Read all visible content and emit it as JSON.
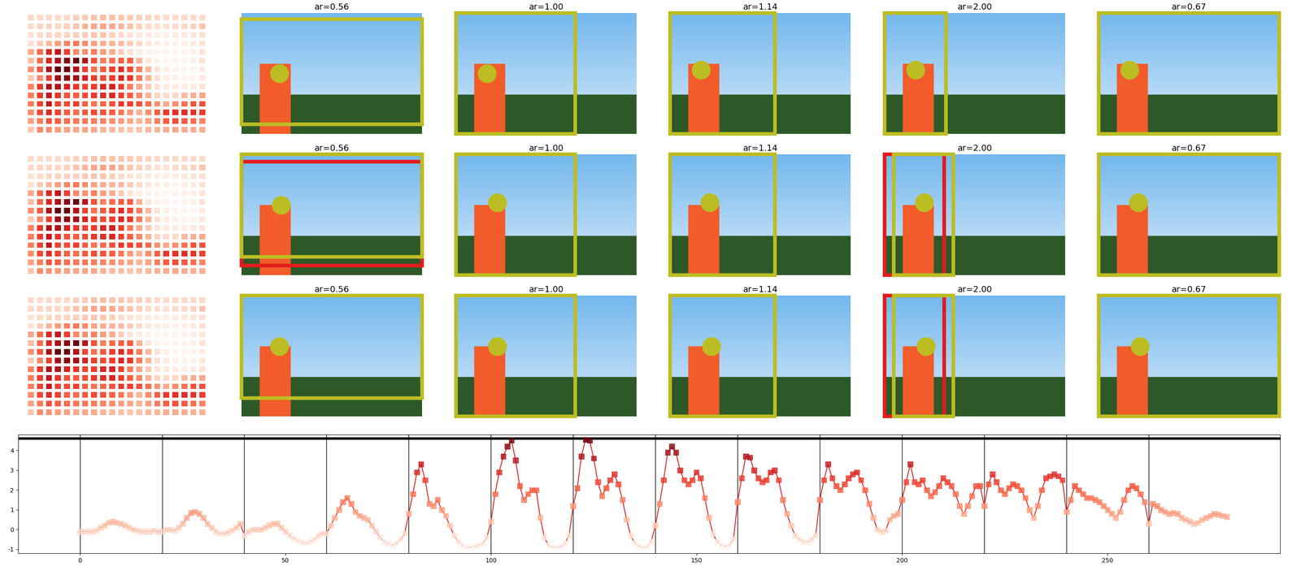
{
  "panels": [
    [
      {
        "title": "ar=0.56",
        "point": [
          0.21,
          0.5
        ],
        "boxes": [
          {
            "color": "#bcbd22",
            "box": [
              0.0,
              0.05,
              1.0,
              0.92
            ]
          }
        ]
      },
      {
        "title": "ar=1.00",
        "point": [
          0.17,
          0.5
        ],
        "boxes": [
          {
            "color": "#bcbd22",
            "box": [
              0.0,
              0.0,
              0.66,
              1.0
            ]
          }
        ]
      },
      {
        "title": "ar=1.14",
        "point": [
          0.17,
          0.47
        ],
        "boxes": [
          {
            "color": "#bcbd22",
            "box": [
              0.0,
              0.0,
              0.58,
              1.0
            ]
          }
        ]
      },
      {
        "title": "ar=2.00",
        "point": [
          0.17,
          0.47
        ],
        "boxes": [
          {
            "color": "#bcbd22",
            "box": [
              0.0,
              0.0,
              0.34,
              1.0
            ]
          }
        ]
      },
      {
        "title": "ar=0.67",
        "point": [
          0.17,
          0.47
        ],
        "boxes": [
          {
            "color": "#bcbd22",
            "box": [
              0.0,
              0.0,
              1.0,
              1.0
            ]
          }
        ]
      }
    ],
    [
      {
        "title": "ar=0.56",
        "point": [
          0.22,
          0.42
        ],
        "boxes": [
          {
            "color": "#e41a1c",
            "box": [
              0.0,
              0.06,
              1.0,
              0.92
            ]
          },
          {
            "color": "#bcbd22",
            "box": [
              0.0,
              0.0,
              1.0,
              0.85
            ]
          }
        ]
      },
      {
        "title": "ar=1.00",
        "point": [
          0.23,
          0.4
        ],
        "boxes": [
          {
            "color": "#bcbd22",
            "box": [
              0.0,
              0.0,
              0.66,
              1.0
            ]
          }
        ]
      },
      {
        "title": "ar=1.14",
        "point": [
          0.22,
          0.4
        ],
        "boxes": [
          {
            "color": "#bcbd22",
            "box": [
              0.0,
              0.0,
              0.58,
              1.0
            ]
          }
        ]
      },
      {
        "title": "ar=2.00",
        "point": [
          0.22,
          0.4
        ],
        "boxes": [
          {
            "color": "#e41a1c",
            "box": [
              0.0,
              0.0,
              0.33,
              1.0
            ]
          },
          {
            "color": "#bcbd22",
            "box": [
              0.05,
              0.0,
              0.38,
              1.0
            ]
          }
        ]
      },
      {
        "title": "ar=0.67",
        "point": [
          0.22,
          0.4
        ],
        "boxes": [
          {
            "color": "#bcbd22",
            "box": [
              0.0,
              0.0,
              1.0,
              1.0
            ]
          }
        ]
      }
    ],
    [
      {
        "title": "ar=0.56",
        "point": [
          0.21,
          0.42
        ],
        "boxes": [
          {
            "color": "#bcbd22",
            "box": [
              0.0,
              0.0,
              1.0,
              0.85
            ]
          }
        ]
      },
      {
        "title": "ar=1.00",
        "point": [
          0.23,
          0.42
        ],
        "boxes": [
          {
            "color": "#bcbd22",
            "box": [
              0.0,
              0.0,
              0.66,
              1.0
            ]
          }
        ]
      },
      {
        "title": "ar=1.14",
        "point": [
          0.23,
          0.42
        ],
        "boxes": [
          {
            "color": "#bcbd22",
            "box": [
              0.0,
              0.0,
              0.58,
              1.0
            ]
          }
        ]
      },
      {
        "title": "ar=2.00",
        "point": [
          0.23,
          0.42
        ],
        "boxes": [
          {
            "color": "#e41a1c",
            "box": [
              0.0,
              0.0,
              0.33,
              1.0
            ]
          },
          {
            "color": "#bcbd22",
            "box": [
              0.05,
              0.0,
              0.38,
              1.0
            ]
          }
        ]
      },
      {
        "title": "ar=0.67",
        "point": [
          0.23,
          0.42
        ],
        "boxes": [
          {
            "color": "#bcbd22",
            "box": [
              0.0,
              0.0,
              1.0,
              1.0
            ]
          }
        ]
      }
    ]
  ],
  "heatmap_shape": [
    14,
    20
  ],
  "chart_data": {
    "type": "line",
    "color": "#d62728",
    "marker": "square",
    "xlim": [
      -15,
      292
    ],
    "ylim": [
      -1.2,
      4.8
    ],
    "xticks": [
      0,
      50,
      100,
      150,
      200,
      250
    ],
    "yticks": [
      -1,
      0,
      1,
      2,
      3,
      4
    ],
    "vlines": [
      0,
      20,
      40,
      60,
      80,
      100,
      120,
      140,
      160,
      180,
      200,
      220,
      240,
      260
    ],
    "hline": 4.6,
    "x": [
      0,
      1,
      2,
      3,
      4,
      5,
      6,
      7,
      8,
      9,
      10,
      11,
      12,
      13,
      14,
      15,
      16,
      17,
      18,
      19,
      20,
      21,
      22,
      23,
      24,
      25,
      26,
      27,
      28,
      29,
      30,
      31,
      32,
      33,
      34,
      35,
      36,
      37,
      38,
      39,
      40,
      41,
      42,
      43,
      44,
      45,
      46,
      47,
      48,
      49,
      50,
      51,
      52,
      53,
      54,
      55,
      56,
      57,
      58,
      59,
      60,
      61,
      62,
      63,
      64,
      65,
      66,
      67,
      68,
      69,
      70,
      71,
      72,
      73,
      74,
      75,
      76,
      77,
      78,
      79,
      80,
      81,
      82,
      83,
      84,
      85,
      86,
      87,
      88,
      89,
      90,
      91,
      92,
      93,
      94,
      95,
      96,
      97,
      98,
      99,
      100,
      101,
      102,
      103,
      104,
      105,
      106,
      107,
      108,
      109,
      110,
      111,
      112,
      113,
      114,
      115,
      116,
      117,
      118,
      119,
      120,
      121,
      122,
      123,
      124,
      125,
      126,
      127,
      128,
      129,
      130,
      131,
      132,
      133,
      134,
      135,
      136,
      137,
      138,
      139,
      140,
      141,
      142,
      143,
      144,
      145,
      146,
      147,
      148,
      149,
      150,
      151,
      152,
      153,
      154,
      155,
      156,
      157,
      158,
      159,
      160,
      161,
      162,
      163,
      164,
      165,
      166,
      167,
      168,
      169,
      170,
      171,
      172,
      173,
      174,
      175,
      176,
      177,
      178,
      179,
      180,
      181,
      182,
      183,
      184,
      185,
      186,
      187,
      188,
      189,
      190,
      191,
      192,
      193,
      194,
      195,
      196,
      197,
      198,
      199,
      200,
      201,
      202,
      203,
      204,
      205,
      206,
      207,
      208,
      209,
      210,
      211,
      212,
      213,
      214,
      215,
      216,
      217,
      218,
      219,
      220,
      221,
      222,
      223,
      224,
      225,
      226,
      227,
      228,
      229,
      230,
      231,
      232,
      233,
      234,
      235,
      236,
      237,
      238,
      239,
      240,
      241,
      242,
      243,
      244,
      245,
      246,
      247,
      248,
      249,
      250,
      251,
      252,
      253,
      254,
      255,
      256,
      257,
      258,
      259,
      260,
      261,
      262,
      263,
      264,
      265,
      266,
      267,
      268,
      269,
      270,
      271,
      272,
      273,
      274,
      275,
      276,
      277,
      278,
      279
    ],
    "values": [
      -0.1,
      -0.1,
      -0.1,
      -0.1,
      -0.05,
      0.1,
      0.2,
      0.35,
      0.4,
      0.35,
      0.3,
      0.2,
      0.1,
      0,
      -0.05,
      -0.1,
      -0.1,
      -0.1,
      -0.05,
      -0.1,
      -0.1,
      0,
      0,
      -0.05,
      0.1,
      0.3,
      0.6,
      0.85,
      0.9,
      0.8,
      0.6,
      0.3,
      0.1,
      -0.1,
      -0.2,
      -0.2,
      -0.15,
      -0.05,
      0.1,
      0.3,
      -0.3,
      -0.1,
      0,
      0,
      0,
      0.1,
      0.2,
      0.3,
      0.3,
      0.1,
      -0.1,
      -0.3,
      -0.45,
      -0.55,
      -0.65,
      -0.7,
      -0.6,
      -0.5,
      -0.3,
      -0.2,
      -0.2,
      0.2,
      0.6,
      1.0,
      1.4,
      1.6,
      1.3,
      0.9,
      0.7,
      0.6,
      0.5,
      0.2,
      -0.1,
      -0.4,
      -0.6,
      -0.7,
      -0.8,
      -0.7,
      -0.5,
      -0.2,
      0.8,
      1.8,
      2.9,
      3.3,
      2.5,
      1.3,
      1.2,
      1.5,
      1.0,
      0.7,
      0.2,
      -0.3,
      -0.6,
      -0.8,
      -0.9,
      -0.9,
      -0.85,
      -0.8,
      -0.7,
      -0.4,
      0.4,
      1.8,
      2.9,
      3.7,
      4.2,
      4.5,
      3.5,
      2.2,
      1.5,
      1.8,
      2.0,
      2.0,
      0.6,
      -0.4,
      -0.8,
      -0.9,
      -0.9,
      -0.85,
      -0.7,
      -0.3,
      1.2,
      2.1,
      3.7,
      4.55,
      4.5,
      3.6,
      2.4,
      1.7,
      2.1,
      2.5,
      2.8,
      2.3,
      1.5,
      0.5,
      -0.3,
      -0.7,
      -0.85,
      -0.9,
      -0.85,
      -0.6,
      0.2,
      1.3,
      2.5,
      3.9,
      4.2,
      3.9,
      3.0,
      2.5,
      2.3,
      2.5,
      2.9,
      2.6,
      1.6,
      0.6,
      -0.2,
      -0.6,
      -0.8,
      -0.85,
      -0.8,
      -0.5,
      1.4,
      2.6,
      3.7,
      3.65,
      3.0,
      2.6,
      2.4,
      2.5,
      2.9,
      3.0,
      2.5,
      1.5,
      0.8,
      0.2,
      -0.3,
      -0.5,
      -0.6,
      -0.65,
      -0.5,
      -0.3,
      1.5,
      2.5,
      3.3,
      2.6,
      2.2,
      2.0,
      2.3,
      2.6,
      2.8,
      2.9,
      2.5,
      2.0,
      1.3,
      0.6,
      0,
      -0.1,
      -0.05,
      0.5,
      0.7,
      0.8,
      1.5,
      2.4,
      3.3,
      2.4,
      2.3,
      2.5,
      2.0,
      1.7,
      1.9,
      2.2,
      2.6,
      2.4,
      2.2,
      1.8,
      1.2,
      0.8,
      1.2,
      1.7,
      2.2,
      2.2,
      1.2,
      2.3,
      2.8,
      2.4,
      2.0,
      1.8,
      2.1,
      2.3,
      2.2,
      2.0,
      1.6,
      1.0,
      0.6,
      1.2,
      2.0,
      2.6,
      2.7,
      2.8,
      2.7,
      2.5,
      0.9,
      1.5,
      2.2,
      2.0,
      1.8,
      1.6,
      1.6,
      1.5,
      1.4,
      1.2,
      1.0,
      0.8,
      0.6,
      0.9,
      1.5,
      2.0,
      2.2,
      2.1,
      1.8,
      1.4,
      0.3,
      1.3,
      1.2,
      1.0,
      0.9,
      0.8,
      0.85,
      0.8,
      0.6,
      0.5,
      0.4,
      0.3,
      0.35,
      0.5,
      0.6,
      0.7,
      0.8,
      0.75,
      0.7,
      0.65
    ]
  }
}
